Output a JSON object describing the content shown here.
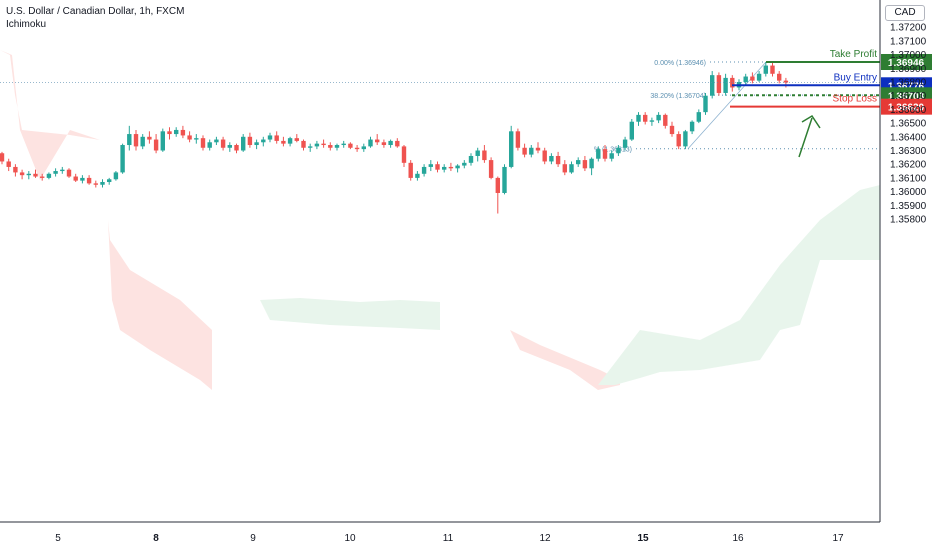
{
  "header": {
    "title": "U.S. Dollar / Canadian Dollar, 1h, FXCM",
    "indicator": "Ichimoku",
    "currency": "CAD"
  },
  "colors": {
    "up": "#26a69a",
    "down": "#ef5350",
    "cloud_bear": "#fde3e1",
    "cloud_bull": "#e8f5ec",
    "take_profit": "#2e7d32",
    "buy_entry": "#0d2fbf",
    "fib_38": "#2e7d32",
    "stop_loss": "#e53935",
    "fib_text": "#5b8fb0"
  },
  "chart_data": {
    "type": "candlestick",
    "instrument": "U.S. Dollar / Canadian Dollar",
    "interval": "1h",
    "y_axis": {
      "range": [
        1.3575,
        1.373
      ],
      "ticks": [
        "1.35800",
        "1.35900",
        "1.36000",
        "1.36100",
        "1.36200",
        "1.36300",
        "1.36400",
        "1.36500",
        "1.36600",
        "1.36700",
        "1.36800",
        "1.36900",
        "1.37000",
        "1.37100",
        "1.37200"
      ]
    },
    "x_axis": {
      "labels": [
        "5",
        "8",
        "9",
        "10",
        "11",
        "12",
        "15",
        "16",
        "17"
      ],
      "bold": [
        "8",
        "15"
      ]
    },
    "levels": [
      {
        "name": "Take Profit",
        "value": 1.36946,
        "label": "1.36946"
      },
      {
        "name": "Buy Entry",
        "value": 1.36776,
        "label": "1.36776"
      },
      {
        "name": "",
        "value": 1.36703,
        "label": "1.36703"
      },
      {
        "name": "Stop Loss",
        "value": 1.3662,
        "label": "1.36620"
      }
    ],
    "fib": [
      {
        "text": "0.00% (1.36946)",
        "value": 1.36946
      },
      {
        "text": "38.20% (1.36704)",
        "value": 1.36704
      },
      {
        "text": "% (1.36313)",
        "value": 1.36313
      }
    ],
    "last_price": 1.36796,
    "candles": [
      [
        1.3628,
        1.3629,
        1.362,
        1.3622
      ],
      [
        1.3622,
        1.3624,
        1.3615,
        1.3618
      ],
      [
        1.3618,
        1.362,
        1.3611,
        1.3614
      ],
      [
        1.3614,
        1.3616,
        1.3609,
        1.3612
      ],
      [
        1.3612,
        1.3615,
        1.3609,
        1.3613
      ],
      [
        1.3613,
        1.3616,
        1.361,
        1.3611
      ],
      [
        1.3611,
        1.3613,
        1.3608,
        1.361
      ],
      [
        1.361,
        1.3614,
        1.3609,
        1.3613
      ],
      [
        1.3613,
        1.3617,
        1.3611,
        1.3615
      ],
      [
        1.3615,
        1.3618,
        1.3613,
        1.3616
      ],
      [
        1.3616,
        1.3617,
        1.361,
        1.3611
      ],
      [
        1.3611,
        1.3613,
        1.3607,
        1.3608
      ],
      [
        1.3608,
        1.3612,
        1.3606,
        1.361
      ],
      [
        1.361,
        1.3612,
        1.3605,
        1.3606
      ],
      [
        1.3606,
        1.3608,
        1.3603,
        1.3605
      ],
      [
        1.3605,
        1.3609,
        1.3603,
        1.3607
      ],
      [
        1.3607,
        1.361,
        1.3605,
        1.3609
      ],
      [
        1.3609,
        1.3615,
        1.3608,
        1.3614
      ],
      [
        1.3614,
        1.3635,
        1.3613,
        1.3634
      ],
      [
        1.3634,
        1.3648,
        1.363,
        1.3642
      ],
      [
        1.3642,
        1.3645,
        1.363,
        1.3633
      ],
      [
        1.3633,
        1.3642,
        1.3631,
        1.364
      ],
      [
        1.364,
        1.3644,
        1.3635,
        1.3638
      ],
      [
        1.3638,
        1.3642,
        1.3628,
        1.363
      ],
      [
        1.363,
        1.3646,
        1.3629,
        1.3644
      ],
      [
        1.3644,
        1.3647,
        1.3638,
        1.3642
      ],
      [
        1.3642,
        1.3647,
        1.364,
        1.3645
      ],
      [
        1.3645,
        1.3648,
        1.3639,
        1.3641
      ],
      [
        1.3641,
        1.3644,
        1.3636,
        1.3638
      ],
      [
        1.3638,
        1.3642,
        1.3635,
        1.3639
      ],
      [
        1.3639,
        1.3641,
        1.363,
        1.3632
      ],
      [
        1.3632,
        1.3638,
        1.363,
        1.3636
      ],
      [
        1.3636,
        1.364,
        1.3634,
        1.3638
      ],
      [
        1.3638,
        1.364,
        1.363,
        1.3632
      ],
      [
        1.3632,
        1.3636,
        1.3629,
        1.3634
      ],
      [
        1.3634,
        1.3635,
        1.3628,
        1.363
      ],
      [
        1.363,
        1.3642,
        1.3629,
        1.364
      ],
      [
        1.364,
        1.3643,
        1.3632,
        1.3634
      ],
      [
        1.3634,
        1.3638,
        1.3631,
        1.3636
      ],
      [
        1.3636,
        1.364,
        1.3633,
        1.3638
      ],
      [
        1.3638,
        1.3643,
        1.3636,
        1.3641
      ],
      [
        1.3641,
        1.3644,
        1.3635,
        1.3637
      ],
      [
        1.3637,
        1.364,
        1.3633,
        1.3635
      ],
      [
        1.3635,
        1.364,
        1.3633,
        1.3639
      ],
      [
        1.3639,
        1.3642,
        1.3636,
        1.3637
      ],
      [
        1.3637,
        1.3638,
        1.363,
        1.3632
      ],
      [
        1.3632,
        1.3635,
        1.3629,
        1.3633
      ],
      [
        1.3633,
        1.3637,
        1.3631,
        1.3635
      ],
      [
        1.3635,
        1.3638,
        1.3632,
        1.3634
      ],
      [
        1.3634,
        1.3636,
        1.363,
        1.3632
      ],
      [
        1.3632,
        1.3635,
        1.363,
        1.3634
      ],
      [
        1.3634,
        1.3637,
        1.3632,
        1.3635
      ],
      [
        1.3635,
        1.3636,
        1.3631,
        1.3632
      ],
      [
        1.3632,
        1.3634,
        1.3629,
        1.3631
      ],
      [
        1.3631,
        1.3635,
        1.3629,
        1.3633
      ],
      [
        1.3633,
        1.364,
        1.3632,
        1.3638
      ],
      [
        1.3638,
        1.3642,
        1.3634,
        1.3636
      ],
      [
        1.3636,
        1.3638,
        1.3632,
        1.3634
      ],
      [
        1.3634,
        1.3638,
        1.3632,
        1.3637
      ],
      [
        1.3637,
        1.3639,
        1.3632,
        1.3633
      ],
      [
        1.3633,
        1.3634,
        1.3618,
        1.3621
      ],
      [
        1.3621,
        1.3623,
        1.3608,
        1.361
      ],
      [
        1.361,
        1.3615,
        1.3608,
        1.3613
      ],
      [
        1.3613,
        1.362,
        1.3611,
        1.3618
      ],
      [
        1.3618,
        1.3623,
        1.3615,
        1.362
      ],
      [
        1.362,
        1.3622,
        1.3614,
        1.3616
      ],
      [
        1.3616,
        1.362,
        1.3614,
        1.3618
      ],
      [
        1.3618,
        1.3621,
        1.3615,
        1.3617
      ],
      [
        1.3617,
        1.362,
        1.3614,
        1.3619
      ],
      [
        1.3619,
        1.3623,
        1.3617,
        1.3621
      ],
      [
        1.3621,
        1.3628,
        1.3619,
        1.3626
      ],
      [
        1.3626,
        1.3632,
        1.3622,
        1.363
      ],
      [
        1.363,
        1.3634,
        1.3621,
        1.3623
      ],
      [
        1.3623,
        1.3625,
        1.3609,
        1.361
      ],
      [
        1.361,
        1.3611,
        1.3584,
        1.3599
      ],
      [
        1.3599,
        1.362,
        1.3598,
        1.3618
      ],
      [
        1.3618,
        1.3648,
        1.3617,
        1.3644
      ],
      [
        1.3644,
        1.3646,
        1.363,
        1.3632
      ],
      [
        1.3632,
        1.3635,
        1.3625,
        1.3627
      ],
      [
        1.3627,
        1.3634,
        1.3625,
        1.3632
      ],
      [
        1.3632,
        1.3636,
        1.3628,
        1.363
      ],
      [
        1.363,
        1.3632,
        1.362,
        1.3622
      ],
      [
        1.3622,
        1.3628,
        1.362,
        1.3626
      ],
      [
        1.3626,
        1.3629,
        1.3618,
        1.362
      ],
      [
        1.362,
        1.3623,
        1.3612,
        1.3614
      ],
      [
        1.3614,
        1.3622,
        1.3613,
        1.362
      ],
      [
        1.362,
        1.3625,
        1.3618,
        1.3623
      ],
      [
        1.3623,
        1.3626,
        1.3615,
        1.3617
      ],
      [
        1.3617,
        1.3625,
        1.3612,
        1.3624
      ],
      [
        1.3624,
        1.3633,
        1.3622,
        1.3631
      ],
      [
        1.3631,
        1.3634,
        1.3622,
        1.3624
      ],
      [
        1.3624,
        1.363,
        1.3622,
        1.3628
      ],
      [
        1.3628,
        1.3634,
        1.3626,
        1.3632
      ],
      [
        1.3632,
        1.364,
        1.363,
        1.3638
      ],
      [
        1.3638,
        1.3653,
        1.3637,
        1.3651
      ],
      [
        1.3651,
        1.3658,
        1.3648,
        1.3656
      ],
      [
        1.3656,
        1.3658,
        1.3649,
        1.3651
      ],
      [
        1.3651,
        1.3654,
        1.3648,
        1.3652
      ],
      [
        1.3652,
        1.3658,
        1.365,
        1.3656
      ],
      [
        1.3656,
        1.3657,
        1.3646,
        1.3648
      ],
      [
        1.3648,
        1.3651,
        1.364,
        1.3642
      ],
      [
        1.3642,
        1.3644,
        1.3631,
        1.3633
      ],
      [
        1.3633,
        1.3645,
        1.3631,
        1.3644
      ],
      [
        1.3644,
        1.3652,
        1.3642,
        1.3651
      ],
      [
        1.3651,
        1.366,
        1.365,
        1.3658
      ],
      [
        1.3658,
        1.3672,
        1.3656,
        1.367
      ],
      [
        1.367,
        1.3688,
        1.3668,
        1.3685
      ],
      [
        1.3685,
        1.3687,
        1.367,
        1.3672
      ],
      [
        1.3672,
        1.3686,
        1.367,
        1.3683
      ],
      [
        1.3683,
        1.3685,
        1.3673,
        1.3676
      ],
      [
        1.3676,
        1.3682,
        1.3674,
        1.368
      ],
      [
        1.368,
        1.3686,
        1.3678,
        1.3684
      ],
      [
        1.3684,
        1.3687,
        1.3679,
        1.3681
      ],
      [
        1.3681,
        1.3688,
        1.368,
        1.3686
      ],
      [
        1.3686,
        1.36946,
        1.3684,
        1.3692
      ],
      [
        1.3692,
        1.3694,
        1.3684,
        1.3686
      ],
      [
        1.3686,
        1.3688,
        1.3679,
        1.3681
      ],
      [
        1.3681,
        1.3683,
        1.3676,
        1.36796
      ]
    ]
  }
}
